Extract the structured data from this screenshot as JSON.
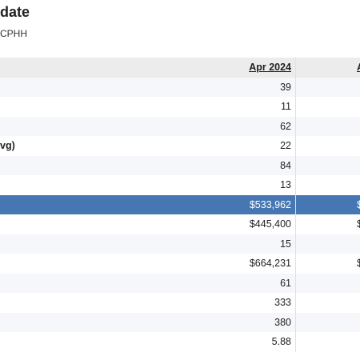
{
  "header": {
    "title": "date",
    "subtitle": "CPHH"
  },
  "table": {
    "columns": [
      "Apr 2024",
      "A"
    ],
    "rows": [
      {
        "values": [
          39
        ]
      },
      {
        "values": [
          11
        ]
      },
      {
        "values": [
          62
        ]
      },
      {
        "label": "vg)",
        "values": [
          22
        ]
      },
      {
        "values": [
          84
        ]
      },
      {
        "values": [
          13
        ]
      },
      {
        "values": [
          "$533,962",
          "$"
        ],
        "highlight": true
      },
      {
        "values": [
          "$445,400",
          "$"
        ]
      },
      {
        "values": [
          15
        ]
      },
      {
        "values": [
          "$664,231",
          "$"
        ]
      },
      {
        "values": [
          61
        ]
      },
      {
        "values": [
          333
        ]
      },
      {
        "values": [
          380
        ]
      },
      {
        "values": [
          5.88
        ]
      }
    ]
  }
}
